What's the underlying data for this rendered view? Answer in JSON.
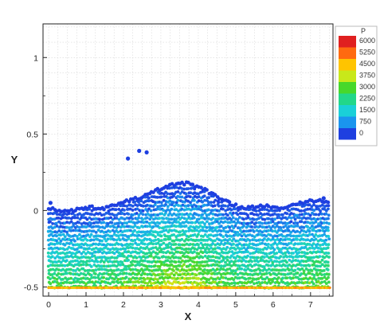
{
  "chart_data": {
    "type": "scatter",
    "title": "",
    "xlabel": "X",
    "ylabel": "Y",
    "xlim": [
      -0.15,
      7.6
    ],
    "ylim": [
      -0.56,
      1.22
    ],
    "grid": true,
    "x_ticks": [
      "0",
      "1",
      "2",
      "3",
      "4",
      "5",
      "6",
      "7"
    ],
    "y_ticks": [
      "-0.5",
      "0",
      "0.5",
      "1"
    ],
    "colorbar": {
      "title": "P",
      "placement": "top-right",
      "levels": [
        "6000",
        "5250",
        "4500",
        "3750",
        "3000",
        "2250",
        "1500",
        "750",
        "0"
      ],
      "colors": [
        "#e02020",
        "#ff6a10",
        "#ffc400",
        "#c8e81a",
        "#47d82b",
        "#22d78a",
        "#1ad0d8",
        "#1a95ee",
        "#1e3fe0"
      ],
      "range": [
        0,
        6000
      ]
    },
    "series": [
      {
        "description_free": true,
        "points_summary": [
          {
            "x": 2.12,
            "y": 0.34,
            "p": 0
          },
          {
            "x": 2.42,
            "y": 0.39,
            "p": 0
          },
          {
            "x": 2.62,
            "y": 0.38,
            "p": 0
          },
          {
            "x": 0.05,
            "y": 0.05,
            "p": 0
          },
          {
            "x": 7.35,
            "y": 0.08,
            "p": 0
          }
        ],
        "free_surface_profile": [
          {
            "x": 0.0,
            "y": 0.0
          },
          {
            "x": 0.5,
            "y": -0.02
          },
          {
            "x": 1.0,
            "y": 0.01
          },
          {
            "x": 1.5,
            "y": 0.0
          },
          {
            "x": 2.0,
            "y": 0.04
          },
          {
            "x": 2.5,
            "y": 0.08
          },
          {
            "x": 3.0,
            "y": 0.13
          },
          {
            "x": 3.5,
            "y": 0.17
          },
          {
            "x": 3.8,
            "y": 0.16
          },
          {
            "x": 4.2,
            "y": 0.12
          },
          {
            "x": 4.7,
            "y": 0.05
          },
          {
            "x": 5.2,
            "y": 0.0
          },
          {
            "x": 5.8,
            "y": 0.02
          },
          {
            "x": 6.3,
            "y": 0.0
          },
          {
            "x": 6.8,
            "y": 0.04
          },
          {
            "x": 7.2,
            "y": 0.06
          },
          {
            "x": 7.5,
            "y": 0.03
          }
        ],
        "bottom_y": -0.5
      }
    ]
  }
}
